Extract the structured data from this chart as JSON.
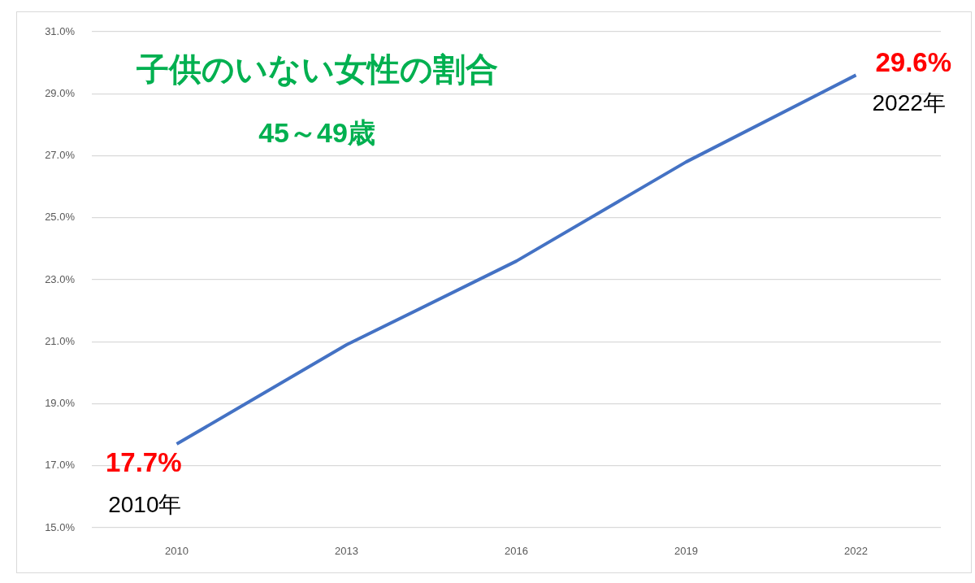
{
  "chart_data": {
    "type": "line",
    "title": "子供のいない女性の割合",
    "subtitle": "45～49歳",
    "categories": [
      "2010",
      "2013",
      "2016",
      "2019",
      "2022"
    ],
    "values": [
      17.7,
      20.9,
      23.6,
      26.8,
      29.6
    ],
    "color": "#4472c4",
    "value_labels": [
      "17.7%",
      null,
      null,
      null,
      "29.6%"
    ],
    "annotations": [
      {
        "text": "2010年",
        "x": "2010",
        "y": 17.7
      },
      {
        "text": "2022年",
        "x": "2022",
        "y": 29.6
      }
    ],
    "ylim": [
      15,
      31
    ],
    "yticks": [
      {
        "value": 15,
        "label": "15.0%"
      },
      {
        "value": 17,
        "label": "17.0%"
      },
      {
        "value": 19,
        "label": "19.0%"
      },
      {
        "value": 21,
        "label": "21.0%"
      },
      {
        "value": 23,
        "label": "23.0%"
      },
      {
        "value": 25,
        "label": "25.0%"
      },
      {
        "value": 27,
        "label": "27.0%"
      },
      {
        "value": 29,
        "label": "29.0%"
      },
      {
        "value": 31,
        "label": "31.0%"
      }
    ],
    "grid": "y",
    "marker": "none",
    "line_style": "solid"
  }
}
